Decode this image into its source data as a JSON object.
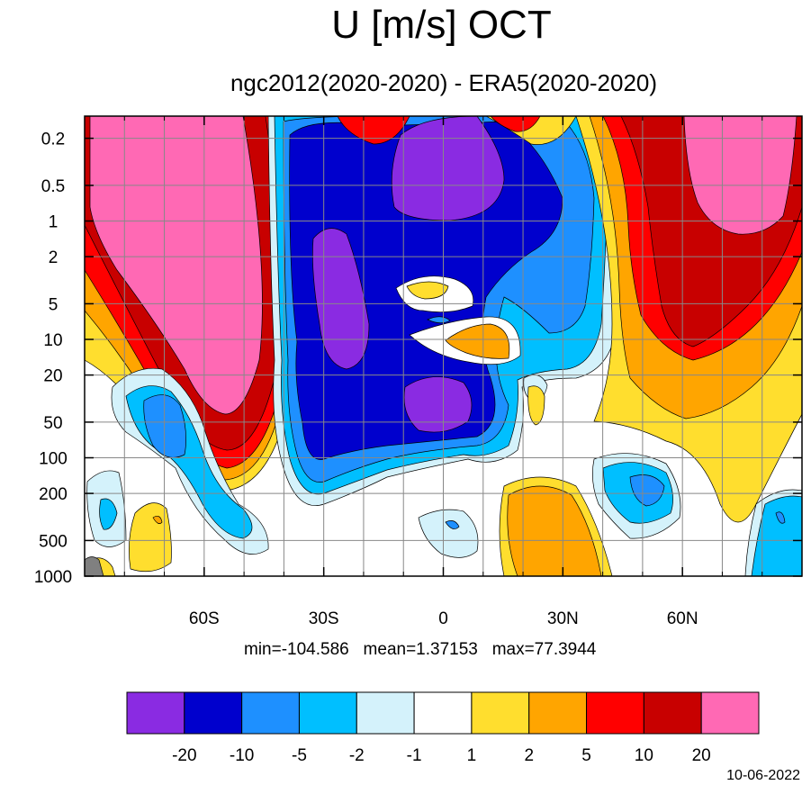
{
  "header": {
    "title": "U [m/s] OCT",
    "subtitle": "ngc2012(2020-2020) - ERA5(2020-2020)"
  },
  "stats": {
    "text": "min=-104.586   mean=1.37153   max=77.3944"
  },
  "footer": {
    "date": "10-06-2022"
  },
  "chart_data": {
    "type": "heatmap",
    "title": "U [m/s] OCT",
    "subtitle": "ngc2012(2020-2020) - ERA5(2020-2020)",
    "xlabel": "",
    "ylabel": "",
    "x_ticks": [
      {
        "label": "60S",
        "value": -60
      },
      {
        "label": "30S",
        "value": -30
      },
      {
        "label": "0",
        "value": 0
      },
      {
        "label": "30N",
        "value": 30
      },
      {
        "label": "60N",
        "value": 60
      }
    ],
    "x_range": [
      -90,
      90
    ],
    "y_ticks": [
      {
        "label": "0.2",
        "value": 0.2
      },
      {
        "label": "0.5",
        "value": 0.5
      },
      {
        "label": "1",
        "value": 1
      },
      {
        "label": "2",
        "value": 2
      },
      {
        "label": "5",
        "value": 5
      },
      {
        "label": "10",
        "value": 10
      },
      {
        "label": "20",
        "value": 20
      },
      {
        "label": "50",
        "value": 50
      },
      {
        "label": "100",
        "value": 100
      },
      {
        "label": "200",
        "value": 200
      },
      {
        "label": "500",
        "value": 500
      },
      {
        "label": "1000",
        "value": 1000
      }
    ],
    "y_range": [
      0.13,
      1000
    ],
    "y_scale": "log",
    "y_inverted": true,
    "grid": true,
    "colorbar": {
      "colors": [
        "#8a2be2",
        "#0000cd",
        "#1e90ff",
        "#00bfff",
        "#d4f2fb",
        "#ffffff",
        "#ffde2e",
        "#ffa500",
        "#ff0000",
        "#c80000",
        "#ff69b4"
      ],
      "labels": [
        "-20",
        "-10",
        "-5",
        "-2",
        "-1",
        "1",
        "2",
        "5",
        "10",
        "20"
      ],
      "levels": [
        -20,
        -10,
        -5,
        -2,
        -1,
        1,
        2,
        5,
        10,
        20
      ]
    },
    "stats": {
      "min": -104.586,
      "mean": 1.37153,
      "max": 77.3944
    }
  }
}
